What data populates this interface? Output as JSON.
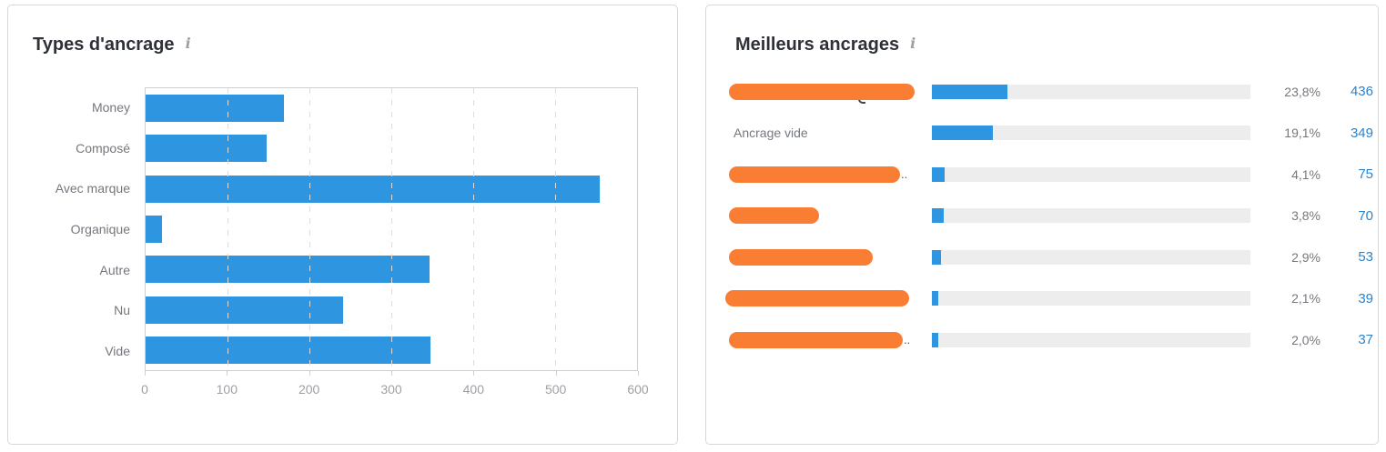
{
  "left_panel": {
    "title": "Types d'ancrage",
    "info_icon": "i"
  },
  "right_panel": {
    "title": "Meilleurs ancrages",
    "info_icon": "i",
    "colors": {
      "bar_fill": "#2e96e0",
      "bar_track": "#ededed",
      "redaction": "#f97d33",
      "count_link": "#2b83cb",
      "percent_text": "#75787d"
    }
  },
  "chart_data": [
    {
      "type": "bar",
      "title": "Types d'ancrage",
      "orientation": "horizontal",
      "categories": [
        "Money",
        "Composé",
        "Avec marque",
        "Organique",
        "Autre",
        "Nu",
        "Vide"
      ],
      "values": [
        169,
        148,
        554,
        20,
        347,
        241,
        348
      ],
      "xlabel": "",
      "ylabel": "",
      "xlim": [
        0,
        600
      ],
      "x_ticks": [
        "0",
        "100",
        "200",
        "300",
        "400",
        "500",
        "600"
      ],
      "grid": "vertical-dashed",
      "legend": "none",
      "bar_color": "#2e96e0"
    },
    {
      "type": "bar",
      "title": "Meilleurs ancrages",
      "orientation": "horizontal-list",
      "max_percent": 100,
      "rows": [
        {
          "label": "",
          "redacted": true,
          "redact_width": 204,
          "artifact": "descender",
          "suffix": "",
          "percent": "23,8%",
          "count": "436"
        },
        {
          "label": "Ancrage vide",
          "redacted": false,
          "suffix": "",
          "percent": "19,1%",
          "count": "349"
        },
        {
          "label": "",
          "redacted": true,
          "redact_width": 188,
          "suffix": "..",
          "percent": "4,1%",
          "count": "75"
        },
        {
          "label": "",
          "redacted": true,
          "redact_width": 99,
          "suffix": "",
          "percent": "3,8%",
          "count": "70"
        },
        {
          "label": "",
          "redacted": true,
          "redact_width": 158,
          "suffix": "",
          "percent": "2,9%",
          "count": "53"
        },
        {
          "label": "",
          "redacted": true,
          "redact_width": 202,
          "redact_offset": -4,
          "suffix": "",
          "percent": "2,1%",
          "count": "39"
        },
        {
          "label": "",
          "redacted": true,
          "redact_width": 191,
          "suffix": "..",
          "percent": "2,0%",
          "count": "37"
        }
      ]
    }
  ]
}
